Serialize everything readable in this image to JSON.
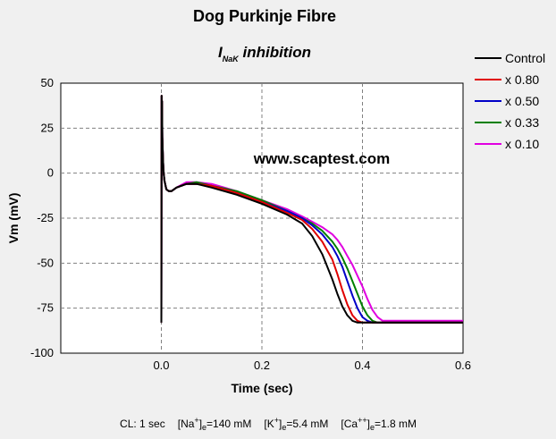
{
  "title": "Dog Purkinje Fibre",
  "subtitle_main": "I",
  "subtitle_sub": "NaK",
  "subtitle_rest": " inhibition",
  "watermark": "www.scaptest.com",
  "footer": {
    "cl": "CL: 1 sec",
    "na_a": "[Na",
    "na_sup": "+",
    "na_b": "]",
    "na_sub": "e",
    "na_c": "=140 mM",
    "k_a": "[K",
    "k_sup": "+",
    "k_b": "]",
    "k_sub": "e",
    "k_c": "=5.4 mM",
    "ca_a": "[Ca",
    "ca_sup": "++",
    "ca_b": "]",
    "ca_sub": "e",
    "ca_c": "=1.8 mM"
  },
  "colors": {
    "control": "#000000",
    "x080": "#e00000",
    "x050": "#0000c8",
    "x033": "#008000",
    "x010": "#e000e0"
  },
  "chart_data": {
    "type": "line",
    "title": "Dog Purkinje Fibre",
    "xlabel": "Time (sec)",
    "ylabel": "Vm (mV)",
    "xlim": [
      -0.2,
      0.6
    ],
    "ylim": [
      -100,
      50
    ],
    "xticks": [
      "0.0",
      "0.2",
      "0.4",
      "0.6"
    ],
    "yticks": [
      "50",
      "25",
      "0",
      "-25",
      "-50",
      "-75",
      "-100"
    ],
    "grid": true,
    "legend_position": "right",
    "series": [
      {
        "name": "Control",
        "color": "#000000",
        "x": [
          0.0,
          0.0005,
          0.001,
          0.0015,
          0.002,
          0.003,
          0.004,
          0.006,
          0.01,
          0.015,
          0.02,
          0.03,
          0.05,
          0.07,
          0.1,
          0.15,
          0.2,
          0.25,
          0.28,
          0.3,
          0.32,
          0.34,
          0.35,
          0.36,
          0.37,
          0.38,
          0.39,
          0.4,
          0.45,
          0.5,
          0.6
        ],
        "y": [
          -83,
          43,
          25,
          40,
          20,
          10,
          2,
          -4,
          -9,
          -10,
          -10,
          -8,
          -6,
          -6,
          -8,
          -12,
          -17,
          -23,
          -28,
          -35,
          -45,
          -59,
          -67,
          -74,
          -79,
          -82,
          -83,
          -83,
          -83,
          -83,
          -83
        ]
      },
      {
        "name": "x 0.80",
        "color": "#e00000",
        "x": [
          0.0,
          0.0005,
          0.001,
          0.0015,
          0.002,
          0.003,
          0.004,
          0.006,
          0.01,
          0.015,
          0.02,
          0.03,
          0.05,
          0.07,
          0.1,
          0.15,
          0.2,
          0.25,
          0.28,
          0.3,
          0.32,
          0.34,
          0.35,
          0.36,
          0.37,
          0.38,
          0.39,
          0.4,
          0.41,
          0.45,
          0.5,
          0.6
        ],
        "y": [
          -83,
          43,
          25,
          40,
          20,
          10,
          2,
          -4,
          -9,
          -10,
          -10,
          -8,
          -6,
          -6,
          -7,
          -11,
          -16,
          -22,
          -26,
          -31,
          -38,
          -48,
          -56,
          -65,
          -73,
          -79,
          -82,
          -83,
          -83,
          -83,
          -83,
          -83
        ]
      },
      {
        "name": "x 0.50",
        "color": "#0000c8",
        "x": [
          0.0,
          0.0005,
          0.001,
          0.0015,
          0.002,
          0.003,
          0.004,
          0.006,
          0.01,
          0.015,
          0.02,
          0.03,
          0.05,
          0.07,
          0.1,
          0.15,
          0.2,
          0.25,
          0.28,
          0.3,
          0.32,
          0.34,
          0.35,
          0.36,
          0.37,
          0.38,
          0.39,
          0.4,
          0.41,
          0.42,
          0.45,
          0.5,
          0.6
        ],
        "y": [
          -83,
          43,
          25,
          40,
          20,
          10,
          2,
          -4,
          -9,
          -10,
          -10,
          -8,
          -6,
          -6,
          -7,
          -11,
          -16,
          -21,
          -25,
          -29,
          -34,
          -41,
          -46,
          -52,
          -60,
          -68,
          -75,
          -80,
          -82,
          -83,
          -83,
          -83,
          -83
        ]
      },
      {
        "name": "x 0.33",
        "color": "#008000",
        "x": [
          0.0,
          0.0005,
          0.001,
          0.0015,
          0.002,
          0.003,
          0.004,
          0.006,
          0.01,
          0.015,
          0.02,
          0.03,
          0.05,
          0.07,
          0.1,
          0.15,
          0.2,
          0.25,
          0.28,
          0.3,
          0.32,
          0.34,
          0.35,
          0.36,
          0.37,
          0.38,
          0.39,
          0.4,
          0.41,
          0.42,
          0.43,
          0.45,
          0.5,
          0.6
        ],
        "y": [
          -83,
          43,
          25,
          40,
          20,
          10,
          2,
          -4,
          -9,
          -10,
          -10,
          -8,
          -6,
          -5,
          -7,
          -10,
          -15,
          -21,
          -25,
          -28,
          -32,
          -38,
          -42,
          -47,
          -53,
          -60,
          -67,
          -74,
          -79,
          -82,
          -83,
          -83,
          -83,
          -83
        ]
      },
      {
        "name": "x 0.10",
        "color": "#e000e0",
        "x": [
          0.0,
          0.0005,
          0.001,
          0.0015,
          0.002,
          0.003,
          0.004,
          0.006,
          0.01,
          0.015,
          0.02,
          0.03,
          0.05,
          0.07,
          0.1,
          0.15,
          0.2,
          0.25,
          0.28,
          0.3,
          0.32,
          0.34,
          0.35,
          0.36,
          0.37,
          0.38,
          0.39,
          0.4,
          0.41,
          0.42,
          0.43,
          0.44,
          0.45,
          0.46,
          0.5,
          0.6
        ],
        "y": [
          -83,
          43,
          25,
          40,
          20,
          10,
          2,
          -4,
          -9,
          -10,
          -10,
          -8,
          -5,
          -5,
          -6,
          -10,
          -15,
          -20,
          -24,
          -27,
          -30,
          -34,
          -37,
          -41,
          -46,
          -51,
          -57,
          -63,
          -70,
          -76,
          -80,
          -82,
          -82,
          -82,
          -82,
          -82
        ]
      }
    ]
  }
}
